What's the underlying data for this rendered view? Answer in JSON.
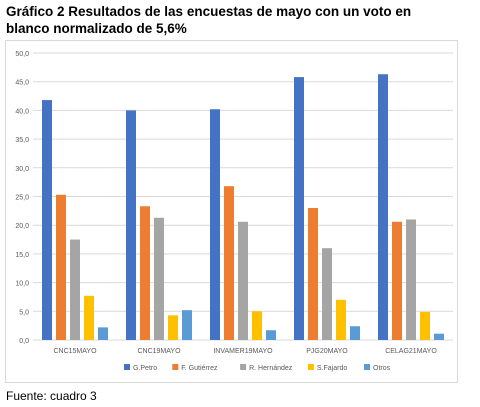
{
  "title": "Gráfico 2 Resultados de las encuestas de mayo con un voto en blanco normalizado de 5,6%",
  "source": "Fuente: cuadro 3",
  "chart_data": {
    "type": "bar",
    "title": "",
    "xlabel": "",
    "ylabel": "",
    "categories": [
      "CNC15MAYO",
      "CNC19MAYO",
      "INVAMER19MAYO",
      "PJG20MAYO",
      "CELAG21MAYO"
    ],
    "ylim": [
      0,
      50
    ],
    "yticks": [
      "0,0",
      "5,0",
      "10,0",
      "15,0",
      "20,0",
      "25,0",
      "30,0",
      "35,0",
      "40,0",
      "45,0",
      "50,0"
    ],
    "grid": true,
    "legend_position": "bottom",
    "series": [
      {
        "name": "G.Petro",
        "color": "#4472C4",
        "values": [
          41.8,
          40.0,
          40.2,
          45.8,
          46.3
        ]
      },
      {
        "name": "F. Gutiérrez",
        "color": "#ED7D31",
        "values": [
          25.3,
          23.3,
          26.8,
          23.0,
          20.6
        ]
      },
      {
        "name": "R. Hernández",
        "color": "#A5A5A5",
        "values": [
          17.5,
          21.3,
          20.6,
          16.0,
          21.0
        ]
      },
      {
        "name": "S.Fajardo",
        "color": "#FFC000",
        "values": [
          7.7,
          4.3,
          5.0,
          7.0,
          4.9
        ]
      },
      {
        "name": "Otros",
        "color": "#5B9BD5",
        "values": [
          2.2,
          5.2,
          1.7,
          2.4,
          1.1
        ]
      }
    ]
  }
}
